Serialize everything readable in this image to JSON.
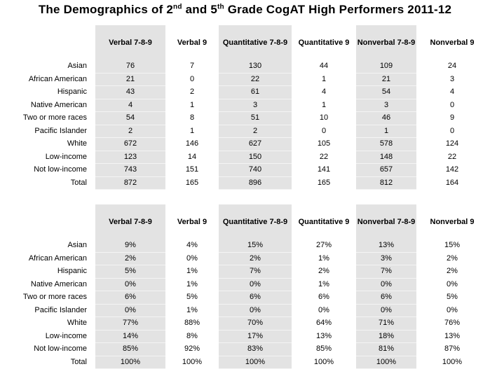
{
  "title": {
    "pre": "The Demographics of 2",
    "sup1": "nd",
    "mid": " and 5",
    "sup2": "th",
    "post": " Grade CogAT High Performers 2011-12"
  },
  "columns": [
    "Verbal 7-8-9",
    "Verbal 9",
    "Quantitative 7-8-9",
    "Quantitative 9",
    "Nonverbal 7-8-9",
    "Nonverbal 9"
  ],
  "counts": {
    "rows": [
      {
        "label": "Asian",
        "values": [
          "76",
          "7",
          "130",
          "44",
          "109",
          "24"
        ]
      },
      {
        "label": "African American",
        "values": [
          "21",
          "0",
          "22",
          "1",
          "21",
          "3"
        ]
      },
      {
        "label": "Hispanic",
        "values": [
          "43",
          "2",
          "61",
          "4",
          "54",
          "4"
        ]
      },
      {
        "label": "Native American",
        "values": [
          "4",
          "1",
          "3",
          "1",
          "3",
          "0"
        ]
      },
      {
        "label": "Two or more races",
        "values": [
          "54",
          "8",
          "51",
          "10",
          "46",
          "9"
        ]
      },
      {
        "label": "Pacific Islander",
        "values": [
          "2",
          "1",
          "2",
          "0",
          "1",
          "0"
        ]
      },
      {
        "label": "White",
        "values": [
          "672",
          "146",
          "627",
          "105",
          "578",
          "124"
        ]
      },
      {
        "label": "Low-income",
        "values": [
          "123",
          "14",
          "150",
          "22",
          "148",
          "22"
        ]
      },
      {
        "label": "Not low-income",
        "values": [
          "743",
          "151",
          "740",
          "141",
          "657",
          "142"
        ]
      },
      {
        "label": "Total",
        "values": [
          "872",
          "165",
          "896",
          "165",
          "812",
          "164"
        ]
      }
    ]
  },
  "percents": {
    "rows": [
      {
        "label": "Asian",
        "values": [
          "9%",
          "4%",
          "15%",
          "27%",
          "13%",
          "15%"
        ]
      },
      {
        "label": "African American",
        "values": [
          "2%",
          "0%",
          "2%",
          "1%",
          "3%",
          "2%"
        ]
      },
      {
        "label": "Hispanic",
        "values": [
          "5%",
          "1%",
          "7%",
          "2%",
          "7%",
          "2%"
        ]
      },
      {
        "label": "Native American",
        "values": [
          "0%",
          "1%",
          "0%",
          "1%",
          "0%",
          "0%"
        ]
      },
      {
        "label": "Two or more races",
        "values": [
          "6%",
          "5%",
          "6%",
          "6%",
          "6%",
          "5%"
        ]
      },
      {
        "label": "Pacific Islander",
        "values": [
          "0%",
          "1%",
          "0%",
          "0%",
          "0%",
          "0%"
        ]
      },
      {
        "label": "White",
        "values": [
          "77%",
          "88%",
          "70%",
          "64%",
          "71%",
          "76%"
        ]
      },
      {
        "label": "Low-income",
        "values": [
          "14%",
          "8%",
          "17%",
          "13%",
          "18%",
          "13%"
        ]
      },
      {
        "label": "Not low-income",
        "values": [
          "85%",
          "92%",
          "83%",
          "85%",
          "81%",
          "87%"
        ]
      },
      {
        "label": "Total",
        "values": [
          "100%",
          "100%",
          "100%",
          "100%",
          "100%",
          "100%"
        ]
      }
    ]
  },
  "colors": {
    "shade": "#e3e3e3"
  }
}
